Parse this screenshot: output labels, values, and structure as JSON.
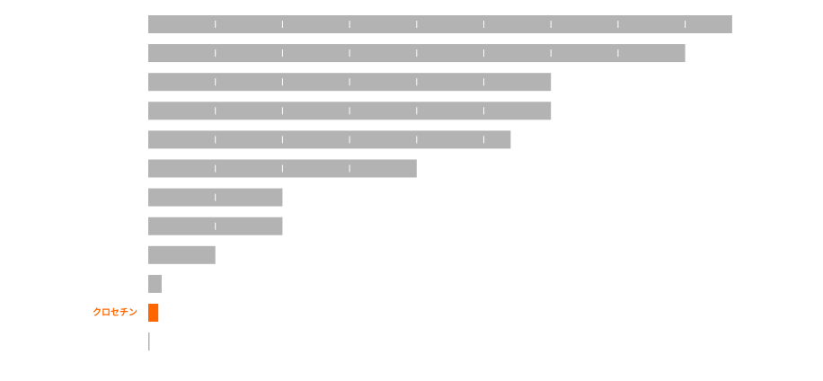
{
  "chart_data": {
    "type": "hbar",
    "categories": [
      null,
      null,
      null,
      null,
      null,
      null,
      null,
      null,
      null,
      null,
      "クロセチン",
      null
    ],
    "values": [
      8.7,
      8.0,
      6.0,
      6.0,
      5.4,
      4.0,
      2.0,
      2.0,
      1.0,
      0.2,
      0.15,
      0.02
    ],
    "colors": [
      "#b3b3b3",
      "#b3b3b3",
      "#b3b3b3",
      "#b3b3b3",
      "#b3b3b3",
      "#b3b3b3",
      "#b3b3b3",
      "#b3b3b3",
      "#b3b3b3",
      "#b3b3b3",
      "#ff6600",
      "#b3b3b3"
    ],
    "xlim": [
      0,
      10
    ],
    "xticks": [
      1,
      2,
      3,
      4,
      5,
      6,
      7,
      8,
      9
    ]
  }
}
